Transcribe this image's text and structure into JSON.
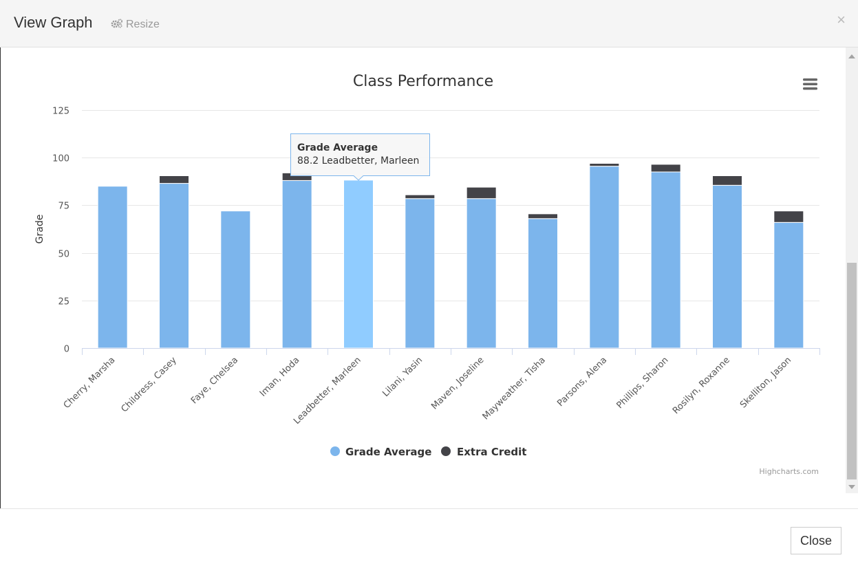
{
  "modal": {
    "title": "View Graph",
    "resize_label": "Resize",
    "close_x": "×",
    "close_button": "Close"
  },
  "chart_data": {
    "type": "bar",
    "stacked": true,
    "title": "Class Performance",
    "xlabel": "",
    "ylabel": "Grade",
    "ylim": [
      0,
      125
    ],
    "yticks": [
      0,
      25,
      50,
      75,
      100,
      125
    ],
    "grid": true,
    "legend_position": "bottom",
    "categories": [
      "Cherry, Marsha",
      "Childress, Casey",
      "Faye, Chelsea",
      "Iman, Hoda",
      "Leadbetter, Marleen",
      "Lilani, Yasin",
      "Maven, Joseline",
      "Mayweather, Tisha",
      "Parsons, Alena",
      "Phillips, Sharon",
      "Rosilyn, Roxanne",
      "Skelliton, Jason"
    ],
    "series": [
      {
        "name": "Grade Average",
        "color": "#7cb5ec",
        "values": [
          85,
          86.5,
          72,
          88,
          88.2,
          78.5,
          78.5,
          68,
          95.5,
          92.5,
          85.5,
          66
        ]
      },
      {
        "name": "Extra Credit",
        "color": "#434348",
        "values": [
          0,
          4,
          0,
          4,
          0,
          2,
          6,
          2.5,
          1.5,
          4,
          5,
          6
        ]
      }
    ],
    "highlight_color": "#90ccff",
    "tooltip": {
      "title": "Grade Average",
      "text": "88.2 Leadbetter, Marleen"
    },
    "credits": "Highcharts.com"
  }
}
